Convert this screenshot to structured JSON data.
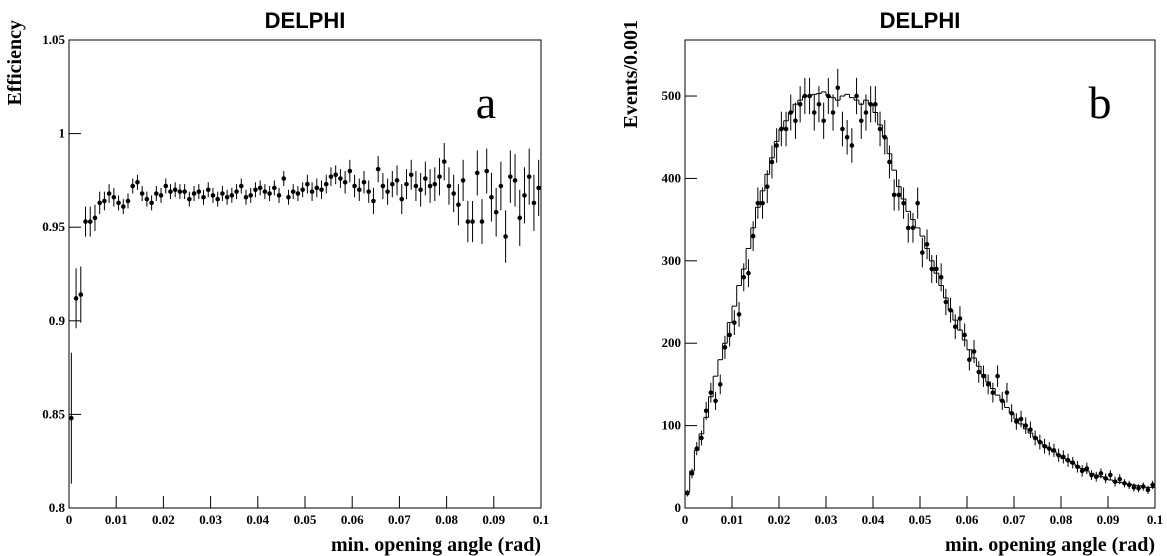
{
  "chart_data": [
    {
      "type": "scatter",
      "title": "DELPHI",
      "annotation": "a",
      "xlabel": "min. opening angle (rad)",
      "ylabel": "Efficiency",
      "xlim": [
        0,
        0.1
      ],
      "ylim": [
        0.8,
        1.05
      ],
      "xticks": [
        0,
        0.01,
        0.02,
        0.03,
        0.04,
        0.05,
        0.06,
        0.07,
        0.08,
        0.09,
        0.1
      ],
      "yticks": [
        0.8,
        0.85,
        0.9,
        0.95,
        1,
        1.05
      ],
      "color": "#000000",
      "bins": [
        0,
        0.001,
        0.002,
        0.003,
        0.004,
        0.005,
        0.006,
        0.007,
        0.008,
        0.009,
        0.01,
        0.011,
        0.012,
        0.013,
        0.014,
        0.015,
        0.016,
        0.017,
        0.018,
        0.019,
        0.02,
        0.021,
        0.022,
        0.023,
        0.024,
        0.025,
        0.026,
        0.027,
        0.028,
        0.029,
        0.03,
        0.031,
        0.032,
        0.033,
        0.034,
        0.035,
        0.036,
        0.037,
        0.038,
        0.039,
        0.04,
        0.041,
        0.042,
        0.043,
        0.044,
        0.045,
        0.046,
        0.047,
        0.048,
        0.049,
        0.05,
        0.051,
        0.052,
        0.053,
        0.054,
        0.055,
        0.056,
        0.057,
        0.058,
        0.059,
        0.06,
        0.061,
        0.062,
        0.063,
        0.064,
        0.065,
        0.066,
        0.067,
        0.068,
        0.069,
        0.07,
        0.071,
        0.072,
        0.073,
        0.074,
        0.075,
        0.076,
        0.077,
        0.078,
        0.079,
        0.08,
        0.081,
        0.082,
        0.083,
        0.084,
        0.085,
        0.086,
        0.087,
        0.088,
        0.089,
        0.09,
        0.091,
        0.092,
        0.093,
        0.094,
        0.095,
        0.096,
        0.097,
        0.098,
        0.099,
        0.1
      ],
      "values": [
        0.848,
        0.912,
        0.914,
        0.953,
        0.953,
        0.955,
        0.963,
        0.964,
        0.968,
        0.966,
        0.963,
        0.961,
        0.964,
        0.972,
        0.974,
        0.968,
        0.965,
        0.963,
        0.968,
        0.967,
        0.972,
        0.969,
        0.97,
        0.969,
        0.969,
        0.965,
        0.968,
        0.969,
        0.966,
        0.97,
        0.967,
        0.965,
        0.968,
        0.966,
        0.967,
        0.969,
        0.972,
        0.966,
        0.967,
        0.97,
        0.971,
        0.969,
        0.968,
        0.971,
        0.967,
        0.976,
        0.966,
        0.969,
        0.968,
        0.97,
        0.973,
        0.969,
        0.971,
        0.97,
        0.973,
        0.977,
        0.978,
        0.976,
        0.974,
        0.98,
        0.972,
        0.97,
        0.974,
        0.969,
        0.964,
        0.981,
        0.972,
        0.969,
        0.973,
        0.975,
        0.965,
        0.973,
        0.978,
        0.972,
        0.97,
        0.976,
        0.972,
        0.973,
        0.977,
        0.985,
        0.972,
        0.968,
        0.962,
        0.975,
        0.953,
        0.953,
        0.979,
        0.953,
        0.98,
        0.966,
        0.958,
        0.972,
        0.945,
        0.977,
        0.975,
        0.955,
        0.967,
        0.977,
        0.963,
        0.971
      ],
      "errors": [
        0.035,
        0.016,
        0.015,
        0.008,
        0.008,
        0.007,
        0.006,
        0.005,
        0.005,
        0.005,
        0.004,
        0.004,
        0.004,
        0.004,
        0.004,
        0.004,
        0.004,
        0.004,
        0.004,
        0.004,
        0.004,
        0.004,
        0.004,
        0.004,
        0.004,
        0.004,
        0.004,
        0.004,
        0.004,
        0.004,
        0.004,
        0.004,
        0.004,
        0.004,
        0.004,
        0.004,
        0.004,
        0.004,
        0.004,
        0.004,
        0.004,
        0.004,
        0.004,
        0.004,
        0.004,
        0.004,
        0.004,
        0.004,
        0.004,
        0.004,
        0.005,
        0.005,
        0.005,
        0.005,
        0.005,
        0.005,
        0.005,
        0.005,
        0.006,
        0.006,
        0.006,
        0.006,
        0.006,
        0.006,
        0.007,
        0.007,
        0.007,
        0.007,
        0.007,
        0.008,
        0.008,
        0.008,
        0.008,
        0.008,
        0.009,
        0.009,
        0.009,
        0.009,
        0.01,
        0.01,
        0.01,
        0.01,
        0.011,
        0.011,
        0.011,
        0.011,
        0.012,
        0.012,
        0.012,
        0.013,
        0.013,
        0.013,
        0.014,
        0.014,
        0.014,
        0.015,
        0.015,
        0.015,
        0.015,
        0.015
      ]
    },
    {
      "type": "histogram",
      "title": "DELPHI",
      "annotation": "b",
      "xlabel": "min. opening angle (rad)",
      "ylabel": "Events/0.001",
      "xlim": [
        0,
        0.1
      ],
      "ylim": [
        0,
        568
      ],
      "xticks": [
        0,
        0.01,
        0.02,
        0.03,
        0.04,
        0.05,
        0.06,
        0.07,
        0.08,
        0.09,
        0.1
      ],
      "yticks": [
        0,
        100,
        200,
        300,
        400,
        500
      ],
      "color": "#000000",
      "bins": [
        0,
        0.001,
        0.002,
        0.003,
        0.004,
        0.005,
        0.006,
        0.007,
        0.008,
        0.009,
        0.01,
        0.011,
        0.012,
        0.013,
        0.014,
        0.015,
        0.016,
        0.017,
        0.018,
        0.019,
        0.02,
        0.021,
        0.022,
        0.023,
        0.024,
        0.025,
        0.026,
        0.027,
        0.028,
        0.029,
        0.03,
        0.031,
        0.032,
        0.033,
        0.034,
        0.035,
        0.036,
        0.037,
        0.038,
        0.039,
        0.04,
        0.041,
        0.042,
        0.043,
        0.044,
        0.045,
        0.046,
        0.047,
        0.048,
        0.049,
        0.05,
        0.051,
        0.052,
        0.053,
        0.054,
        0.055,
        0.056,
        0.057,
        0.058,
        0.059,
        0.06,
        0.061,
        0.062,
        0.063,
        0.064,
        0.065,
        0.066,
        0.067,
        0.068,
        0.069,
        0.07,
        0.071,
        0.072,
        0.073,
        0.074,
        0.075,
        0.076,
        0.077,
        0.078,
        0.079,
        0.08,
        0.081,
        0.082,
        0.083,
        0.084,
        0.085,
        0.086,
        0.087,
        0.088,
        0.089,
        0.09,
        0.091,
        0.092,
        0.093,
        0.094,
        0.095,
        0.096,
        0.097,
        0.098,
        0.099,
        0.1
      ],
      "values": [
        20,
        45,
        70,
        90,
        110,
        135,
        160,
        180,
        200,
        225,
        245,
        270,
        290,
        315,
        340,
        365,
        385,
        405,
        425,
        445,
        460,
        470,
        480,
        490,
        495,
        500,
        500,
        502,
        503,
        505,
        500,
        498,
        495,
        500,
        502,
        498,
        495,
        490,
        495,
        490,
        480,
        465,
        450,
        430,
        410,
        390,
        375,
        360,
        350,
        340,
        330,
        315,
        300,
        285,
        270,
        255,
        240,
        228,
        216,
        204,
        192,
        182,
        172,
        162,
        153,
        145,
        137,
        130,
        122,
        115,
        108,
        102,
        96,
        91,
        86,
        81,
        76,
        72,
        68,
        64,
        60,
        57,
        54,
        51,
        48,
        45,
        42,
        40,
        38,
        36,
        34,
        32,
        31,
        30,
        29,
        28,
        27,
        26,
        25,
        25
      ],
      "data_values": [
        18,
        42,
        72,
        85,
        118,
        140,
        130,
        150,
        195,
        210,
        225,
        235,
        280,
        285,
        330,
        370,
        370,
        390,
        420,
        440,
        460,
        460,
        480,
        470,
        490,
        500,
        500,
        480,
        490,
        470,
        500,
        480,
        510,
        460,
        450,
        440,
        500,
        470,
        480,
        490,
        490,
        460,
        450,
        420,
        380,
        380,
        370,
        340,
        340,
        370,
        310,
        320,
        290,
        290,
        280,
        250,
        240,
        220,
        230,
        210,
        180,
        190,
        165,
        160,
        150,
        140,
        160,
        130,
        140,
        115,
        105,
        108,
        100,
        95,
        85,
        80,
        75,
        72,
        70,
        64,
        62,
        58,
        55,
        50,
        45,
        48,
        40,
        38,
        42,
        36,
        40,
        32,
        35,
        30,
        28,
        25,
        24,
        26,
        22,
        28
      ],
      "data_errors": [
        4,
        6,
        8,
        9,
        11,
        12,
        11,
        12,
        14,
        14,
        15,
        15,
        17,
        17,
        18,
        19,
        19,
        20,
        20,
        21,
        21,
        21,
        22,
        22,
        22,
        22,
        22,
        22,
        22,
        22,
        22,
        22,
        23,
        21,
        21,
        21,
        22,
        22,
        22,
        22,
        22,
        21,
        21,
        20,
        19,
        19,
        19,
        18,
        18,
        19,
        18,
        18,
        17,
        17,
        17,
        16,
        15,
        15,
        15,
        14,
        13,
        14,
        13,
        13,
        12,
        12,
        13,
        11,
        12,
        11,
        10,
        10,
        10,
        10,
        9,
        9,
        9,
        8,
        8,
        8,
        8,
        8,
        7,
        7,
        7,
        7,
        6,
        6,
        6,
        6,
        6,
        6,
        6,
        5,
        5,
        5,
        5,
        5,
        5,
        5
      ]
    }
  ]
}
